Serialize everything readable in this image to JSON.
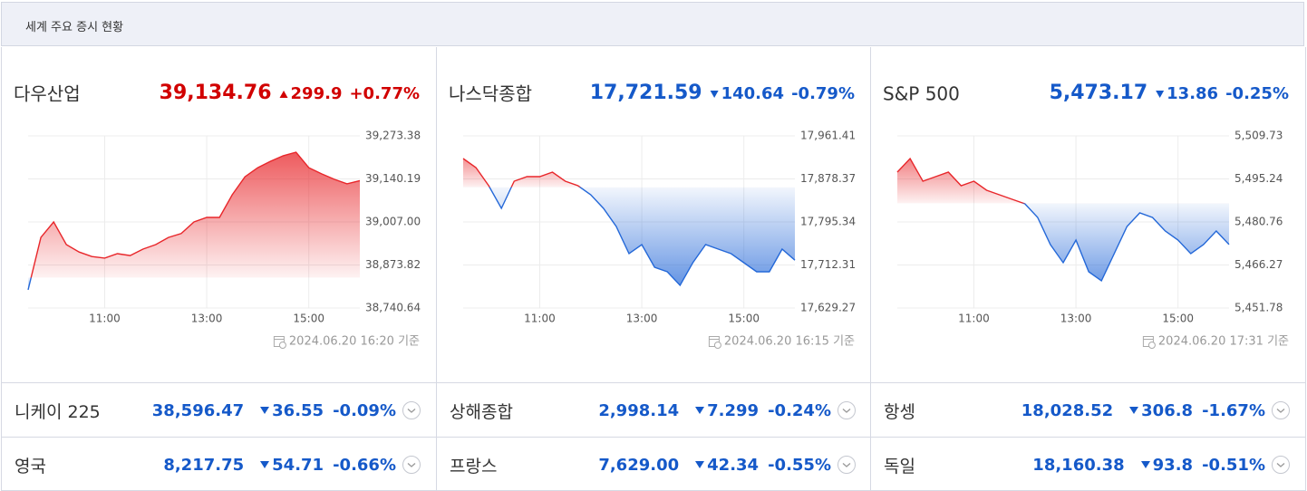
{
  "header": {
    "title": "세계 주요 증시 현황"
  },
  "chart_data": [
    {
      "type": "line",
      "title": "다우산업",
      "price": {
        "value": 39134.76,
        "label": "39,134.76"
      },
      "change": 299.9,
      "change_pct": "+0.77%",
      "direction": "up",
      "as_of": "2024.06.20 16:20 기준",
      "x": [
        "09:30",
        "09:45",
        "10:00",
        "10:15",
        "10:30",
        "10:45",
        "11:00",
        "11:15",
        "11:30",
        "11:45",
        "12:00",
        "12:15",
        "12:30",
        "12:45",
        "13:00",
        "13:15",
        "13:30",
        "13:45",
        "14:00",
        "14:15",
        "14:30",
        "14:45",
        "15:00",
        "15:15",
        "15:30",
        "15:45",
        "16:00"
      ],
      "values": [
        38797,
        38959,
        39007,
        38937,
        38914,
        38900,
        38895,
        38909,
        38903,
        38923,
        38937,
        38959,
        38971,
        39007,
        39021,
        39021,
        39091,
        39147,
        39175,
        39195,
        39212,
        39223,
        39175,
        39156,
        39139,
        39125,
        39134.76
      ],
      "xlim": [
        "09:30",
        "16:00"
      ],
      "xticks": [
        "11:00",
        "13:00",
        "15:00"
      ],
      "ylim": [
        38740.64,
        39273.38
      ],
      "yticks": [
        {
          "value": 38740.64,
          "label": "38,740.64"
        },
        {
          "value": 38873.82,
          "label": "38,873.82"
        },
        {
          "value": 39007,
          "label": "39,007.00"
        },
        {
          "value": 39140.19,
          "label": "39,140.19"
        },
        {
          "value": 39273.38,
          "label": "39,273.38"
        }
      ],
      "grid": true,
      "up_color": "#e8262a",
      "down_color": "#2468d8"
    },
    {
      "type": "line",
      "title": "나스닥종합",
      "price": {
        "value": 17721.59,
        "label": "17,721.59"
      },
      "change": 140.64,
      "change_pct": "-0.79%",
      "direction": "down",
      "as_of": "2024.06.20 16:15 기준",
      "x": [
        "09:30",
        "09:45",
        "10:00",
        "10:15",
        "10:30",
        "10:45",
        "11:00",
        "11:15",
        "11:30",
        "11:45",
        "12:00",
        "12:15",
        "12:30",
        "12:45",
        "13:00",
        "13:15",
        "13:30",
        "13:45",
        "14:00",
        "14:15",
        "14:30",
        "14:45",
        "15:00",
        "15:15",
        "15:30",
        "15:45",
        "16:00"
      ],
      "values": [
        17917.7,
        17900.2,
        17865.3,
        17821.6,
        17874.0,
        17882.8,
        17882.8,
        17891.5,
        17874.0,
        17865.3,
        17847.8,
        17821.6,
        17786.6,
        17734.2,
        17751.7,
        17708.0,
        17699.2,
        17673.0,
        17716.7,
        17751.7,
        17742.9,
        17734.2,
        17716.7,
        17699.2,
        17699.2,
        17742.9,
        17721.59
      ],
      "xlim": [
        "09:30",
        "16:00"
      ],
      "xticks": [
        "11:00",
        "13:00",
        "15:00"
      ],
      "ylim": [
        17629.27,
        17961.41
      ],
      "yticks": [
        {
          "value": 17629.27,
          "label": "17,629.27"
        },
        {
          "value": 17712.31,
          "label": "17,712.31"
        },
        {
          "value": 17795.34,
          "label": "17,795.34"
        },
        {
          "value": 17878.37,
          "label": "17,878.37"
        },
        {
          "value": 17961.41,
          "label": "17,961.41"
        }
      ],
      "grid": true,
      "up_color": "#e8262a",
      "down_color": "#2468d8"
    },
    {
      "type": "line",
      "title": "S&P 500",
      "price": {
        "value": 5473.17,
        "label": "5,473.17"
      },
      "change": 13.86,
      "change_pct": "-0.25%",
      "direction": "down",
      "as_of": "2024.06.20 17:31 기준",
      "x": [
        "09:30",
        "09:45",
        "10:00",
        "10:15",
        "10:30",
        "10:45",
        "11:00",
        "11:15",
        "11:30",
        "11:45",
        "12:00",
        "12:15",
        "12:30",
        "12:45",
        "13:00",
        "13:15",
        "13:30",
        "13:45",
        "14:00",
        "14:15",
        "14:30",
        "14:45",
        "15:00",
        "15:15",
        "15:30",
        "15:45",
        "16:00"
      ],
      "values": [
        5497.53,
        5502.11,
        5494.48,
        5496.01,
        5497.53,
        5492.96,
        5494.48,
        5491.43,
        5489.91,
        5488.38,
        5486.86,
        5482.28,
        5473.13,
        5467.03,
        5474.66,
        5463.98,
        5460.93,
        5470.08,
        5479.23,
        5483.81,
        5482.28,
        5477.71,
        5474.66,
        5470.08,
        5473.13,
        5477.71,
        5473.17
      ],
      "xlim": [
        "09:30",
        "16:00"
      ],
      "xticks": [
        "11:00",
        "13:00",
        "15:00"
      ],
      "ylim": [
        5451.78,
        5509.73
      ],
      "yticks": [
        {
          "value": 5451.78,
          "label": "5,451.78"
        },
        {
          "value": 5466.27,
          "label": "5,466.27"
        },
        {
          "value": 5480.76,
          "label": "5,480.76"
        },
        {
          "value": 5495.24,
          "label": "5,495.24"
        },
        {
          "value": 5509.73,
          "label": "5,509.73"
        }
      ],
      "grid": true,
      "up_color": "#e8262a",
      "down_color": "#2468d8"
    }
  ],
  "indices": [
    {
      "name": "니케이 225",
      "price": "38,596.47",
      "change": "36.55",
      "change_pct": "-0.09%",
      "direction": "down"
    },
    {
      "name": "상해종합",
      "price": "2,998.14",
      "change": "7.299",
      "change_pct": "-0.24%",
      "direction": "down"
    },
    {
      "name": "항셍",
      "price": "18,028.52",
      "change": "306.8",
      "change_pct": "-1.67%",
      "direction": "down"
    },
    {
      "name": "영국",
      "price": "8,217.75",
      "change": "54.71",
      "change_pct": "-0.66%",
      "direction": "down"
    },
    {
      "name": "프랑스",
      "price": "7,629.00",
      "change": "42.34",
      "change_pct": "-0.55%",
      "direction": "down"
    },
    {
      "name": "독일",
      "price": "18,160.38",
      "change": "93.8",
      "change_pct": "-0.51%",
      "direction": "down"
    }
  ]
}
